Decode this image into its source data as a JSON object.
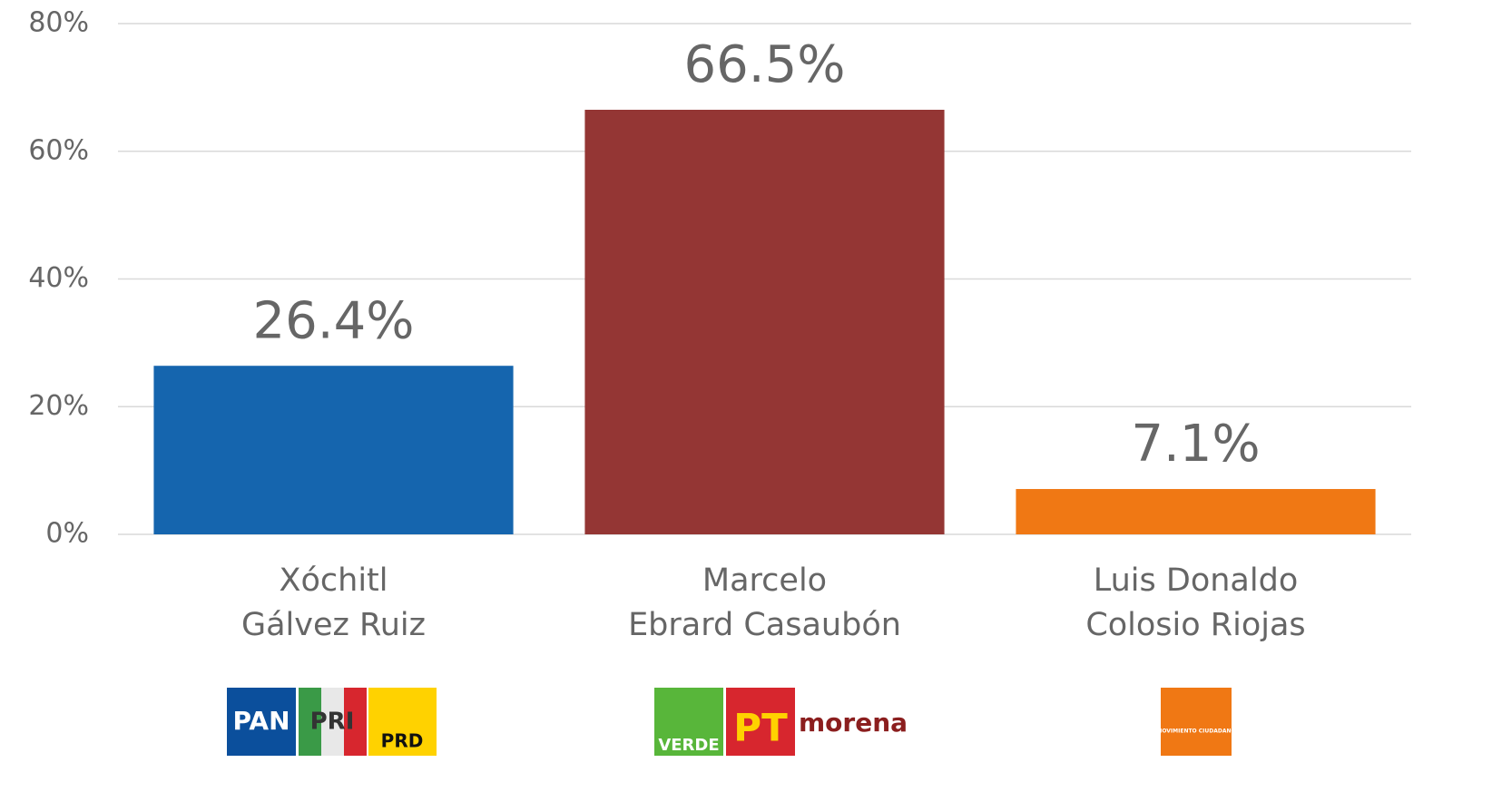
{
  "chart_data": {
    "type": "bar",
    "categories": [
      [
        "Xóchitl",
        "Gálvez Ruiz"
      ],
      [
        "Marcelo",
        "Ebrard Casaubón"
      ],
      [
        "Luis Donaldo",
        "Colosio Riojas"
      ]
    ],
    "values": [
      26.4,
      66.5,
      7.1
    ],
    "value_labels": [
      "26.4%",
      "66.5%",
      "7.1%"
    ],
    "colors": [
      "#1565ae",
      "#943634",
      "#f07814"
    ],
    "ylim": [
      0,
      80
    ],
    "yticks": [
      {
        "value": 0,
        "label": "0%"
      },
      {
        "value": 20,
        "label": "20%"
      },
      {
        "value": 40,
        "label": "40%"
      },
      {
        "value": 60,
        "label": "60%"
      },
      {
        "value": 80,
        "label": "80%"
      }
    ],
    "grid": true,
    "logos": [
      [
        "PAN",
        "PRI",
        "PRD"
      ],
      [
        "VERDE",
        "PT",
        "morena"
      ],
      [
        "MOVIMIENTO CIUDADANO"
      ]
    ]
  }
}
